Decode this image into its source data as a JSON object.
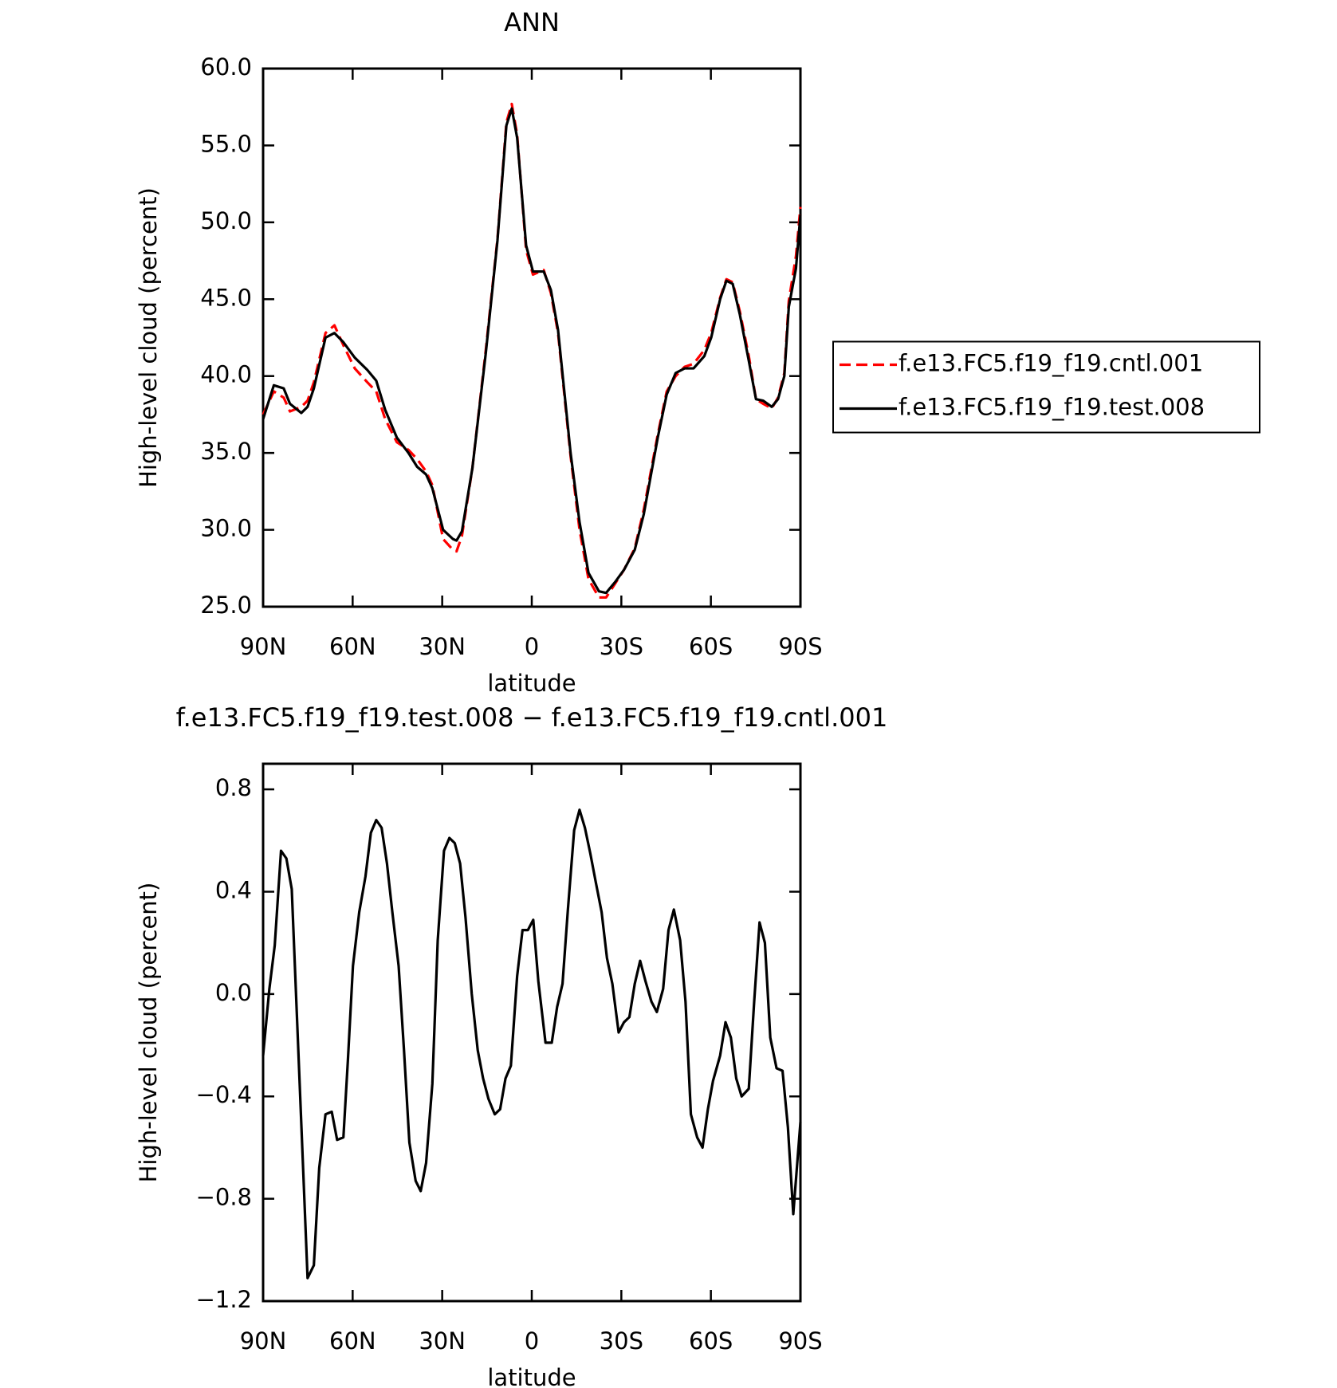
{
  "chart_data": [
    {
      "type": "line",
      "title": "ANN",
      "xlabel": "latitude",
      "ylabel": "High-level cloud (percent)",
      "x": [
        90,
        86.4,
        83.1,
        81.0,
        77.2,
        75.1,
        73.0,
        69.1,
        66.1,
        63.1,
        59.3,
        55.1,
        52.1,
        49.1,
        45.2,
        41.3,
        38.4,
        35.4,
        33.3,
        29.7,
        26.4,
        25.2,
        23.4,
        19.9,
        15.4,
        11.5,
        8.5,
        6.7,
        4.9,
        1.9,
        -0.4,
        -4.0,
        -6.4,
        -8.8,
        -13.0,
        -16.0,
        -19.0,
        -22.5,
        -24.9,
        -27.9,
        -30.9,
        -34.5,
        -37.5,
        -42.2,
        -45.2,
        -48.2,
        -51.2,
        -54.2,
        -57.8,
        -60.1,
        -63.1,
        -65.2,
        -67.3,
        -69.7,
        -72.7,
        -75.1,
        -77.5,
        -80.4,
        -82.5,
        -84.6,
        -86.1,
        -88.5,
        -90
      ],
      "series": [
        {
          "name": "f.e13.FC5.f19_f19.cntl.001",
          "color": "#ff0000",
          "dashed": true,
          "values": [
            37.5,
            39.0,
            38.6,
            37.7,
            38.0,
            38.4,
            39.6,
            42.8,
            43.3,
            42.0,
            40.5,
            39.6,
            39.0,
            37.2,
            35.7,
            35.2,
            34.6,
            33.8,
            32.9,
            29.4,
            28.7,
            28.6,
            29.6,
            34.0,
            41.7,
            48.9,
            56.5,
            57.7,
            55.7,
            48.2,
            46.6,
            46.9,
            45.4,
            42.8,
            34.8,
            30.0,
            26.8,
            25.6,
            25.6,
            26.5,
            27.4,
            28.8,
            31.3,
            36.2,
            39.0,
            40.0,
            40.6,
            40.8,
            41.7,
            42.8,
            45.1,
            46.3,
            46.1,
            44.2,
            41.3,
            38.5,
            38.2,
            37.9,
            38.6,
            40.2,
            44.9,
            47.8,
            51.0
          ]
        },
        {
          "name": "f.e13.FC5.f19_f19.test.008",
          "color": "#000000",
          "dashed": false,
          "values": [
            37.2,
            39.4,
            39.2,
            38.2,
            37.6,
            38.0,
            39.2,
            42.5,
            42.8,
            42.2,
            41.2,
            40.4,
            39.7,
            37.8,
            36.0,
            35.0,
            34.1,
            33.6,
            32.7,
            30.0,
            29.4,
            29.3,
            29.9,
            34.0,
            41.5,
            48.8,
            56.3,
            57.4,
            55.5,
            48.5,
            46.8,
            46.8,
            45.6,
            43.0,
            35.0,
            30.5,
            27.2,
            26.0,
            25.9,
            26.6,
            27.4,
            28.7,
            31.0,
            36.0,
            38.8,
            40.2,
            40.5,
            40.5,
            41.3,
            42.5,
            45.0,
            46.2,
            46.0,
            44.0,
            41.0,
            38.5,
            38.4,
            38.0,
            38.5,
            40.0,
            44.5,
            47.0,
            50.5
          ]
        }
      ],
      "xlim": [
        90,
        -90
      ],
      "xticks": [
        {
          "value": 90,
          "label": "90N"
        },
        {
          "value": 60,
          "label": "60N"
        },
        {
          "value": 30,
          "label": "30N"
        },
        0,
        {
          "value": -30,
          "label": "30S"
        },
        {
          "value": -60,
          "label": "60S"
        },
        {
          "value": -90,
          "label": "90S"
        }
      ],
      "ylim": [
        25,
        60
      ],
      "yticks": [
        {
          "value": 25,
          "label": "25.0"
        },
        {
          "value": 30,
          "label": "30.0"
        },
        {
          "value": 35,
          "label": "35.0"
        },
        {
          "value": 40,
          "label": "40.0"
        },
        {
          "value": 45,
          "label": "45.0"
        },
        {
          "value": 50,
          "label": "50.0"
        },
        {
          "value": 55,
          "label": "55.0"
        },
        {
          "value": 60,
          "label": "60.0"
        }
      ],
      "grid": false,
      "legend": "right"
    },
    {
      "type": "line",
      "title": "f.e13.FC5.f19_f19.test.008 − f.e13.FC5.f19_f19.cntl.001",
      "xlabel": "latitude",
      "ylabel": "High-level cloud (percent)",
      "x": [
        90,
        87.9,
        86.1,
        84.0,
        82.2,
        80.4,
        75.1,
        73.0,
        71.2,
        69.1,
        67.0,
        65.2,
        63.1,
        61.6,
        59.9,
        57.8,
        55.7,
        53.9,
        52.1,
        50.3,
        48.5,
        46.7,
        44.6,
        42.8,
        41.0,
        38.9,
        37.2,
        35.4,
        33.3,
        31.5,
        29.4,
        27.6,
        25.8,
        24.0,
        22.2,
        20.1,
        18.1,
        16.3,
        14.5,
        12.4,
        10.6,
        8.8,
        7.0,
        4.9,
        3.1,
        1.3,
        -0.5,
        -2.2,
        -4.6,
        -6.7,
        -8.5,
        -10.3,
        -12.1,
        -14.2,
        -16.0,
        -17.8,
        -19.6,
        -21.4,
        -23.4,
        -25.2,
        -27.0,
        -29.1,
        -30.9,
        -32.7,
        -34.5,
        -36.3,
        -38.1,
        -40.1,
        -41.9,
        -44.0,
        -45.8,
        -47.6,
        -49.7,
        -51.5,
        -53.3,
        -55.4,
        -57.2,
        -59.0,
        -60.7,
        -63.1,
        -64.9,
        -66.7,
        -68.5,
        -70.3,
        -72.7,
        -74.5,
        -76.3,
        -78.1,
        -79.9,
        -82.0,
        -84.0,
        -85.8,
        -87.6,
        -90
      ],
      "series": [
        {
          "color": "#000000",
          "dashed": false,
          "values": [
            -0.24,
            0.02,
            0.19,
            0.56,
            0.53,
            0.41,
            -1.11,
            -1.06,
            -0.68,
            -0.47,
            -0.46,
            -0.57,
            -0.56,
            -0.26,
            0.11,
            0.32,
            0.46,
            0.63,
            0.68,
            0.65,
            0.51,
            0.32,
            0.11,
            -0.22,
            -0.58,
            -0.73,
            -0.77,
            -0.66,
            -0.35,
            0.21,
            0.56,
            0.61,
            0.59,
            0.51,
            0.3,
            0.0,
            -0.22,
            -0.33,
            -0.41,
            -0.47,
            -0.45,
            -0.33,
            -0.28,
            0.07,
            0.25,
            0.25,
            0.29,
            0.05,
            -0.19,
            -0.19,
            -0.05,
            0.04,
            0.33,
            0.64,
            0.72,
            0.65,
            0.55,
            0.44,
            0.32,
            0.14,
            0.04,
            -0.15,
            -0.11,
            -0.09,
            0.04,
            0.13,
            0.05,
            -0.03,
            -0.07,
            0.02,
            0.25,
            0.33,
            0.21,
            -0.03,
            -0.47,
            -0.56,
            -0.6,
            -0.45,
            -0.34,
            -0.24,
            -0.11,
            -0.17,
            -0.33,
            -0.4,
            -0.37,
            -0.03,
            0.28,
            0.2,
            -0.17,
            -0.29,
            -0.3,
            -0.52,
            -0.86,
            -0.5
          ]
        }
      ],
      "xlim": [
        90,
        -90
      ],
      "xticks": [
        {
          "value": 90,
          "label": "90N"
        },
        {
          "value": 60,
          "label": "60N"
        },
        {
          "value": 30,
          "label": "30N"
        },
        0,
        {
          "value": -30,
          "label": "30S"
        },
        {
          "value": -60,
          "label": "60S"
        },
        {
          "value": -90,
          "label": "90S"
        }
      ],
      "ylim": [
        -1.2,
        0.9
      ],
      "yticks": [
        {
          "value": -1.2,
          "label": "−1.2"
        },
        {
          "value": -0.8,
          "label": "−0.8"
        },
        {
          "value": -0.4,
          "label": "−0.4"
        },
        {
          "value": 0,
          "label": "0.0"
        },
        {
          "value": 0.4,
          "label": "0.4"
        },
        {
          "value": 0.8,
          "label": "0.8"
        }
      ],
      "grid": false
    }
  ]
}
